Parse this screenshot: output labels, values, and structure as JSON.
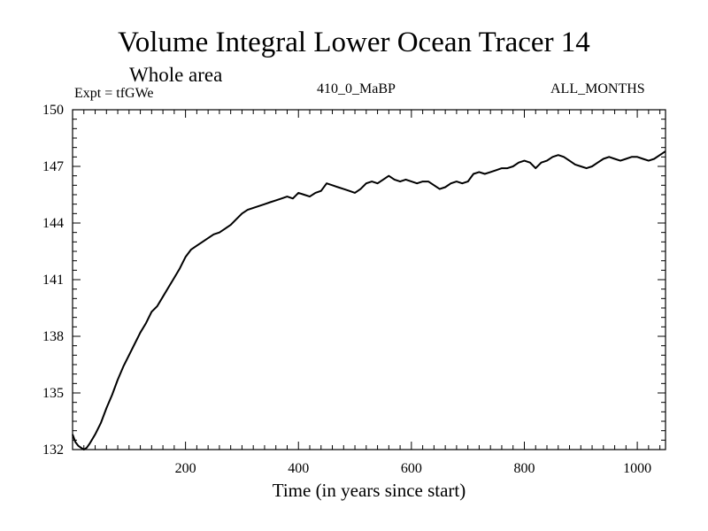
{
  "header": {
    "title": "Volume Integral Lower Ocean Tracer 14",
    "subtitle": "Whole area",
    "experiment": "Expt = tfGWe",
    "run_id": "410_0_MaBP",
    "months": "ALL_MONTHS"
  },
  "chart_data": {
    "type": "line",
    "title": "Volume Integral Lower Ocean Tracer 14",
    "subtitle": "Whole area",
    "xlabel": "Time (in years since start)",
    "ylabel": "",
    "xlim": [
      0,
      1050
    ],
    "ylim": [
      132,
      150
    ],
    "xticks": [
      200,
      400,
      600,
      800,
      1000
    ],
    "yticks": [
      132,
      135,
      138,
      141,
      144,
      147,
      150
    ],
    "grid": false,
    "series": [
      {
        "name": "Tracer 14",
        "x": [
          0,
          5,
          10,
          15,
          20,
          25,
          30,
          40,
          50,
          60,
          70,
          80,
          90,
          100,
          110,
          120,
          130,
          140,
          150,
          160,
          170,
          180,
          190,
          200,
          210,
          220,
          230,
          240,
          250,
          260,
          270,
          280,
          290,
          300,
          310,
          320,
          330,
          340,
          350,
          360,
          370,
          380,
          390,
          400,
          410,
          420,
          430,
          440,
          450,
          460,
          470,
          480,
          490,
          500,
          510,
          520,
          530,
          540,
          550,
          560,
          570,
          580,
          590,
          600,
          610,
          620,
          630,
          640,
          650,
          660,
          670,
          680,
          690,
          700,
          710,
          720,
          730,
          740,
          750,
          760,
          770,
          780,
          790,
          800,
          810,
          820,
          830,
          840,
          850,
          860,
          870,
          880,
          890,
          900,
          910,
          920,
          930,
          940,
          950,
          960,
          970,
          980,
          990,
          1000,
          1010,
          1020,
          1030,
          1040,
          1050
        ],
        "y": [
          132.8,
          132.4,
          132.2,
          132.1,
          132.0,
          132.1,
          132.3,
          132.8,
          133.4,
          134.2,
          134.9,
          135.7,
          136.4,
          137.0,
          137.6,
          138.2,
          138.7,
          139.3,
          139.6,
          140.1,
          140.6,
          141.1,
          141.6,
          142.2,
          142.6,
          142.8,
          143.0,
          143.2,
          143.4,
          143.5,
          143.7,
          143.9,
          144.2,
          144.5,
          144.7,
          144.8,
          144.9,
          145.0,
          145.1,
          145.2,
          145.3,
          145.4,
          145.3,
          145.6,
          145.5,
          145.4,
          145.6,
          145.7,
          146.1,
          146.0,
          145.9,
          145.8,
          145.7,
          145.6,
          145.8,
          146.1,
          146.2,
          146.1,
          146.3,
          146.5,
          146.3,
          146.2,
          146.3,
          146.2,
          146.1,
          146.2,
          146.2,
          146.0,
          145.8,
          145.9,
          146.1,
          146.2,
          146.1,
          146.2,
          146.6,
          146.7,
          146.6,
          146.7,
          146.8,
          146.9,
          146.9,
          147.0,
          147.2,
          147.3,
          147.2,
          146.9,
          147.2,
          147.3,
          147.5,
          147.6,
          147.5,
          147.3,
          147.1,
          147.0,
          146.9,
          147.0,
          147.2,
          147.4,
          147.5,
          147.4,
          147.3,
          147.4,
          147.5,
          147.5,
          147.4,
          147.3,
          147.4,
          147.6,
          147.8
        ]
      }
    ]
  }
}
